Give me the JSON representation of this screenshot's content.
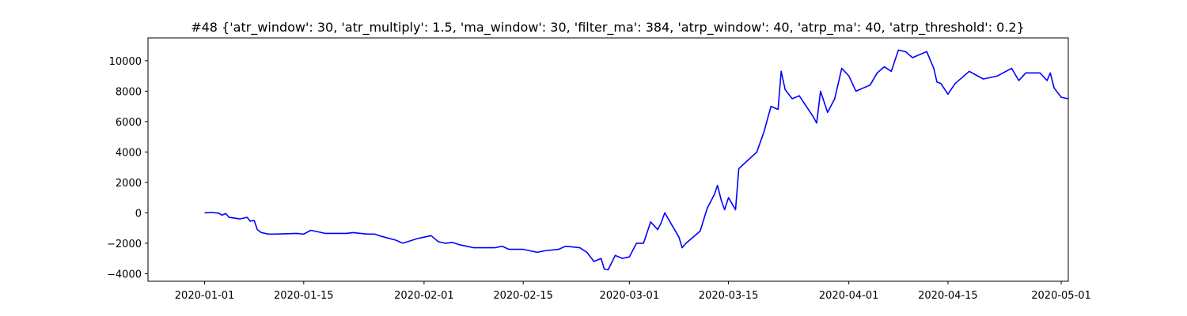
{
  "chart_data": {
    "type": "line",
    "title": "#48 {'atr_window': 30, 'atr_multiply': 1.5, 'ma_window': 30, 'filter_ma': 384, 'atrp_window': 40, 'atrp_ma': 40, 'atrp_threshold': 0.2}",
    "xlabel": "",
    "ylabel": "",
    "xlim": [
      "2019-12-24",
      "2020-05-02"
    ],
    "ylim": [
      -4500,
      11500
    ],
    "grid": false,
    "line_color": "#0000ff",
    "x_ticks": [
      "2020-01-01",
      "2020-01-15",
      "2020-02-01",
      "2020-02-15",
      "2020-03-01",
      "2020-03-15",
      "2020-04-01",
      "2020-04-15",
      "2020-05-01"
    ],
    "y_ticks": [
      -4000,
      -2000,
      0,
      2000,
      4000,
      6000,
      8000,
      10000
    ],
    "series": [
      {
        "points": [
          [
            "2020-01-01",
            0
          ],
          [
            "2020-01-02",
            20
          ],
          [
            "2020-01-03",
            -20
          ],
          [
            "2020-01-03",
            -150
          ],
          [
            "2020-01-04",
            -50
          ],
          [
            "2020-01-04",
            -300
          ],
          [
            "2020-01-06",
            -400
          ],
          [
            "2020-01-07",
            -300
          ],
          [
            "2020-01-07",
            -550
          ],
          [
            "2020-01-08",
            -500
          ],
          [
            "2020-01-08",
            -1100
          ],
          [
            "2020-01-09",
            -1300
          ],
          [
            "2020-01-10",
            -1400
          ],
          [
            "2020-01-11",
            -1400
          ],
          [
            "2020-01-14",
            -1350
          ],
          [
            "2020-01-15",
            -1400
          ],
          [
            "2020-01-16",
            -1150
          ],
          [
            "2020-01-17",
            -1250
          ],
          [
            "2020-01-18",
            -1350
          ],
          [
            "2020-01-21",
            -1350
          ],
          [
            "2020-01-22",
            -1300
          ],
          [
            "2020-01-23",
            -1350
          ],
          [
            "2020-01-24",
            -1400
          ],
          [
            "2020-01-25",
            -1400
          ],
          [
            "2020-01-26",
            -1550
          ],
          [
            "2020-01-28",
            -1800
          ],
          [
            "2020-01-29",
            -2000
          ],
          [
            "2020-01-31",
            -1700
          ],
          [
            "2020-02-01",
            -1600
          ],
          [
            "2020-02-02",
            -1500
          ],
          [
            "2020-02-03",
            -1900
          ],
          [
            "2020-02-04",
            -2000
          ],
          [
            "2020-02-05",
            -1950
          ],
          [
            "2020-02-06",
            -2100
          ],
          [
            "2020-02-07",
            -2200
          ],
          [
            "2020-02-08",
            -2300
          ],
          [
            "2020-02-11",
            -2300
          ],
          [
            "2020-02-12",
            -2200
          ],
          [
            "2020-02-13",
            -2400
          ],
          [
            "2020-02-15",
            -2400
          ],
          [
            "2020-02-17",
            -2600
          ],
          [
            "2020-02-18",
            -2500
          ],
          [
            "2020-02-20",
            -2400
          ],
          [
            "2020-02-21",
            -2200
          ],
          [
            "2020-02-23",
            -2300
          ],
          [
            "2020-02-24",
            -2600
          ],
          [
            "2020-02-25",
            -3200
          ],
          [
            "2020-02-26",
            -3000
          ],
          [
            "2020-02-26",
            -3700
          ],
          [
            "2020-02-27",
            -3750
          ],
          [
            "2020-02-28",
            -2800
          ],
          [
            "2020-02-29",
            -3000
          ],
          [
            "2020-03-01",
            -2900
          ],
          [
            "2020-03-02",
            -2000
          ],
          [
            "2020-03-03",
            -2000
          ],
          [
            "2020-03-04",
            -600
          ],
          [
            "2020-03-05",
            -1100
          ],
          [
            "2020-03-05",
            -700
          ],
          [
            "2020-03-06",
            0
          ],
          [
            "2020-03-07",
            -800
          ],
          [
            "2020-03-08",
            -1600
          ],
          [
            "2020-03-08",
            -2300
          ],
          [
            "2020-03-09",
            -2000
          ],
          [
            "2020-03-11",
            -1200
          ],
          [
            "2020-03-12",
            300
          ],
          [
            "2020-03-13",
            1200
          ],
          [
            "2020-03-13",
            1800
          ],
          [
            "2020-03-14",
            800
          ],
          [
            "2020-03-14",
            200
          ],
          [
            "2020-03-15",
            1000
          ],
          [
            "2020-03-16",
            200
          ],
          [
            "2020-03-16",
            2900
          ],
          [
            "2020-03-19",
            4000
          ],
          [
            "2020-03-20",
            5300
          ],
          [
            "2020-03-21",
            7000
          ],
          [
            "2020-03-22",
            6800
          ],
          [
            "2020-03-22",
            9300
          ],
          [
            "2020-03-23",
            8100
          ],
          [
            "2020-03-24",
            7500
          ],
          [
            "2020-03-25",
            7700
          ],
          [
            "2020-03-27",
            6300
          ],
          [
            "2020-03-27",
            5900
          ],
          [
            "2020-03-28",
            8000
          ],
          [
            "2020-03-29",
            6600
          ],
          [
            "2020-03-30",
            7500
          ],
          [
            "2020-03-31",
            9500
          ],
          [
            "2020-04-01",
            9000
          ],
          [
            "2020-04-02",
            8000
          ],
          [
            "2020-04-04",
            8400
          ],
          [
            "2020-04-05",
            9200
          ],
          [
            "2020-04-06",
            9600
          ],
          [
            "2020-04-07",
            9300
          ],
          [
            "2020-04-08",
            10700
          ],
          [
            "2020-04-09",
            10600
          ],
          [
            "2020-04-10",
            10200
          ],
          [
            "2020-04-12",
            10600
          ],
          [
            "2020-04-13",
            9500
          ],
          [
            "2020-04-13",
            8600
          ],
          [
            "2020-04-14",
            8500
          ],
          [
            "2020-04-15",
            7800
          ],
          [
            "2020-04-16",
            8500
          ],
          [
            "2020-04-18",
            9300
          ],
          [
            "2020-04-20",
            8800
          ],
          [
            "2020-04-22",
            9000
          ],
          [
            "2020-04-24",
            9500
          ],
          [
            "2020-04-25",
            8700
          ],
          [
            "2020-04-26",
            9200
          ],
          [
            "2020-04-28",
            9200
          ],
          [
            "2020-04-29",
            8700
          ],
          [
            "2020-04-29",
            9200
          ],
          [
            "2020-04-30",
            8200
          ],
          [
            "2020-05-01",
            7600
          ],
          [
            "2020-05-02",
            7500
          ]
        ]
      }
    ]
  }
}
